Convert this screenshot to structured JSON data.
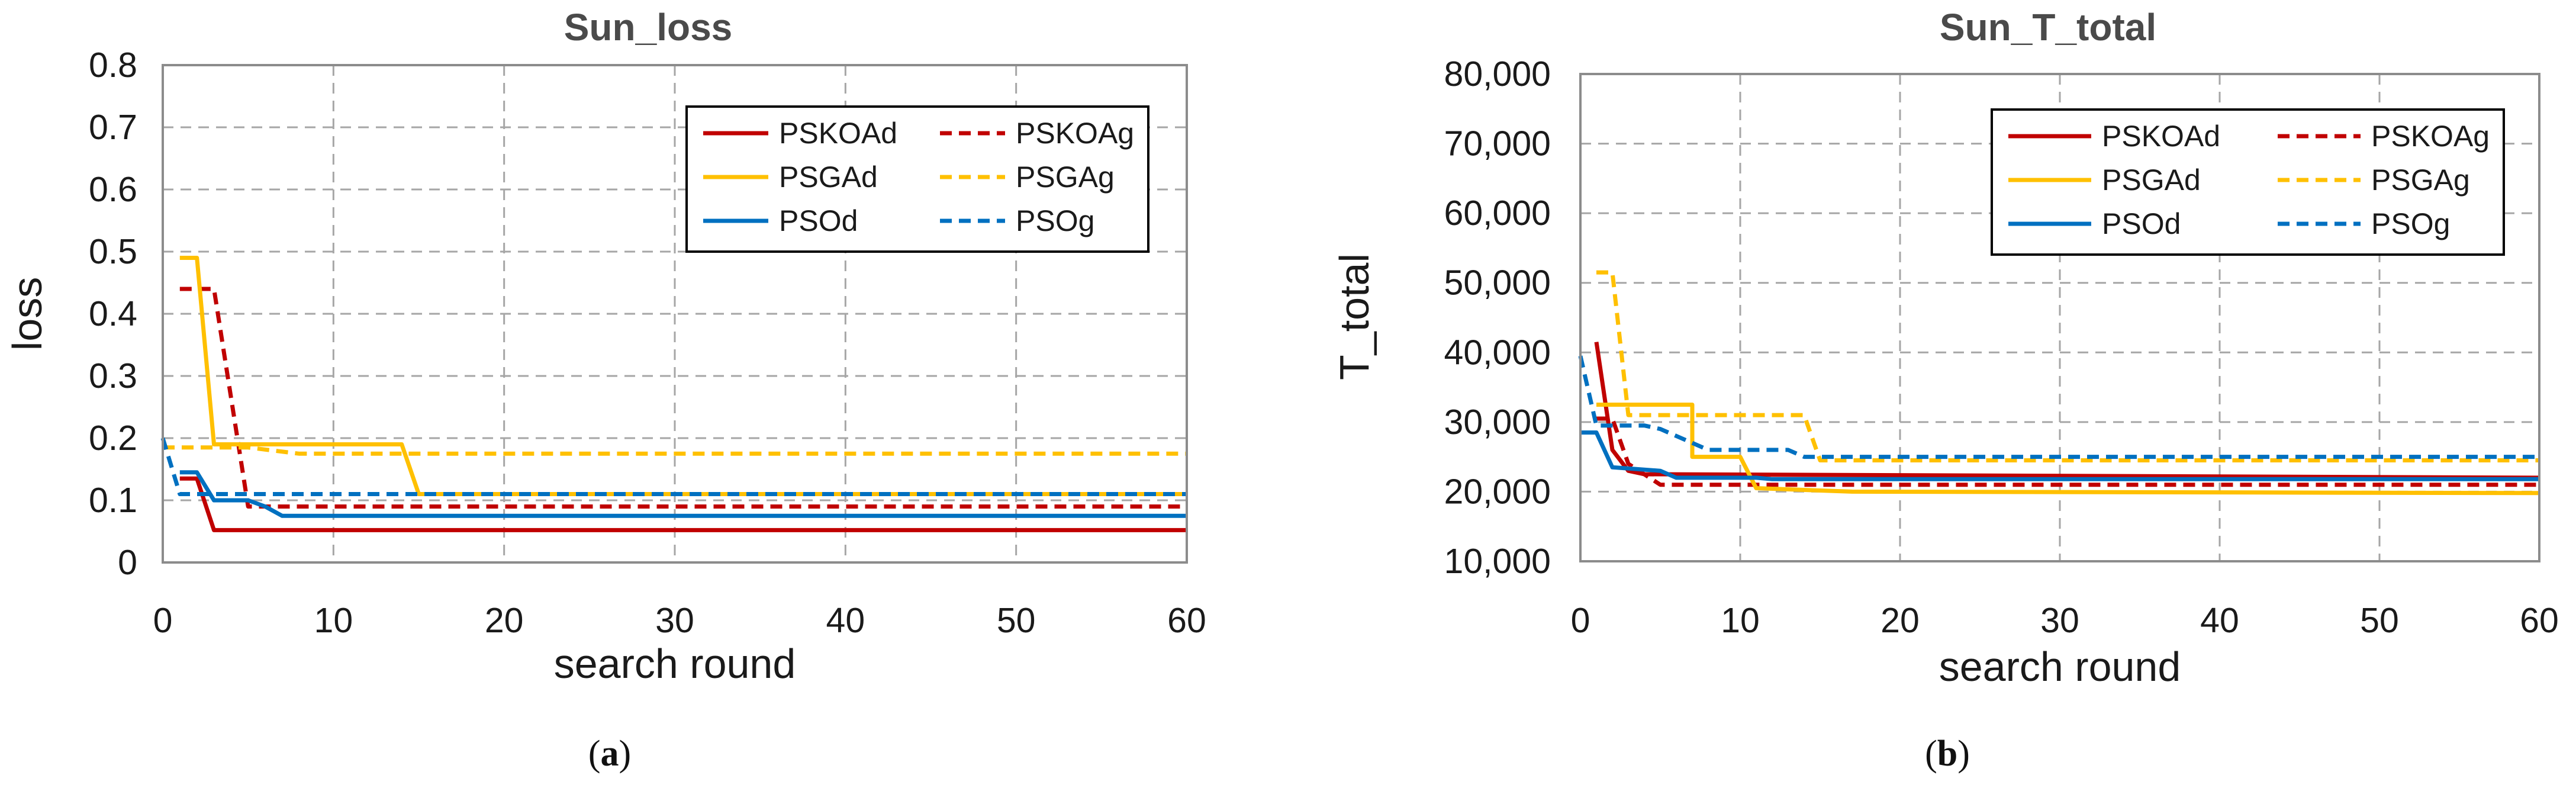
{
  "chart_data": [
    {
      "type": "line",
      "title": "Sun_loss",
      "xlabel": "search round",
      "ylabel": "loss",
      "caption": "a",
      "xlim": [
        0,
        60
      ],
      "ylim": [
        0,
        0.8
      ],
      "xticks": [
        0,
        10,
        20,
        30,
        40,
        50,
        60
      ],
      "xtick_labels": [
        "0",
        "10",
        "20",
        "30",
        "40",
        "50",
        "60"
      ],
      "yticks": [
        0,
        0.1,
        0.2,
        0.3,
        0.4,
        0.5,
        0.6,
        0.7,
        0.8
      ],
      "ytick_labels": [
        "0",
        "0.1",
        "0.2",
        "0.3",
        "0.4",
        "0.5",
        "0.6",
        "0.7",
        "0.8"
      ],
      "grid": true,
      "legend_position": "top-right",
      "series": [
        {
          "name": "PSKOAd",
          "color": "#c00000",
          "dash": "solid",
          "points": [
            [
              1,
              0.135
            ],
            [
              2,
              0.135
            ],
            [
              3,
              0.052
            ],
            [
              60,
              0.052
            ]
          ]
        },
        {
          "name": "PSKOAg",
          "color": "#c00000",
          "dash": "dashed",
          "points": [
            [
              1,
              0.44
            ],
            [
              3,
              0.44
            ],
            [
              5,
              0.09
            ],
            [
              60,
              0.09
            ]
          ]
        },
        {
          "name": "PSGAd",
          "color": "#ffc000",
          "dash": "solid",
          "points": [
            [
              1,
              0.49
            ],
            [
              2,
              0.49
            ],
            [
              3,
              0.19
            ],
            [
              14,
              0.19
            ],
            [
              15,
              0.11
            ],
            [
              60,
              0.11
            ]
          ]
        },
        {
          "name": "PSGAg",
          "color": "#ffc000",
          "dash": "dashed",
          "points": [
            [
              0,
              0.185
            ],
            [
              5,
              0.185
            ],
            [
              8,
              0.175
            ],
            [
              60,
              0.175
            ]
          ]
        },
        {
          "name": "PSOd",
          "color": "#0070c0",
          "dash": "solid",
          "points": [
            [
              1,
              0.145
            ],
            [
              2,
              0.145
            ],
            [
              3,
              0.1
            ],
            [
              5,
              0.1
            ],
            [
              6,
              0.09
            ],
            [
              7,
              0.075
            ],
            [
              60,
              0.075
            ]
          ]
        },
        {
          "name": "PSOg",
          "color": "#0070c0",
          "dash": "dashed",
          "points": [
            [
              0,
              0.2
            ],
            [
              1,
              0.11
            ],
            [
              60,
              0.11
            ]
          ]
        }
      ]
    },
    {
      "type": "line",
      "title": "Sun_T_total",
      "xlabel": "search round",
      "ylabel": "T_total",
      "caption": "b",
      "xlim": [
        0,
        60
      ],
      "ylim": [
        10000,
        80000
      ],
      "xticks": [
        0,
        10,
        20,
        30,
        40,
        50,
        60
      ],
      "xtick_labels": [
        "0",
        "10",
        "20",
        "30",
        "40",
        "50",
        "60"
      ],
      "yticks": [
        10000,
        20000,
        30000,
        40000,
        50000,
        60000,
        70000,
        80000
      ],
      "ytick_labels": [
        "10,000",
        "20,000",
        "30,000",
        "40,000",
        "50,000",
        "60,000",
        "70,000",
        "80,000"
      ],
      "grid": true,
      "legend_position": "top-right",
      "series": [
        {
          "name": "PSKOAd",
          "color": "#c00000",
          "dash": "solid",
          "points": [
            [
              1,
              41500
            ],
            [
              2,
              26000
            ],
            [
              3,
              23000
            ],
            [
              4,
              22500
            ],
            [
              60,
              22000
            ]
          ]
        },
        {
          "name": "PSKOAg",
          "color": "#c00000",
          "dash": "dashed",
          "points": [
            [
              1,
              30500
            ],
            [
              2,
              30500
            ],
            [
              3,
              24000
            ],
            [
              5,
              21000
            ],
            [
              60,
              21000
            ]
          ]
        },
        {
          "name": "PSGAd",
          "color": "#ffc000",
          "dash": "solid",
          "points": [
            [
              1,
              32500
            ],
            [
              7,
              32500
            ],
            [
              7,
              25000
            ],
            [
              10,
              25000
            ],
            [
              11,
              20500
            ],
            [
              17,
              20000
            ],
            [
              60,
              19800
            ]
          ]
        },
        {
          "name": "PSGAg",
          "color": "#ffc000",
          "dash": "dashed",
          "points": [
            [
              1,
              51500
            ],
            [
              2,
              51500
            ],
            [
              3,
              31000
            ],
            [
              14,
              31000
            ],
            [
              15,
              24500
            ],
            [
              60,
              24500
            ]
          ]
        },
        {
          "name": "PSOd",
          "color": "#0070c0",
          "dash": "solid",
          "points": [
            [
              0,
              28500
            ],
            [
              1,
              28500
            ],
            [
              2,
              23500
            ],
            [
              5,
              23000
            ],
            [
              6,
              22000
            ],
            [
              11,
              22000
            ],
            [
              12,
              21800
            ],
            [
              60,
              21800
            ]
          ]
        },
        {
          "name": "PSOg",
          "color": "#0070c0",
          "dash": "dashed",
          "points": [
            [
              0,
              39500
            ],
            [
              1,
              29500
            ],
            [
              4,
              29500
            ],
            [
              5,
              29000
            ],
            [
              8,
              26000
            ],
            [
              13,
              26000
            ],
            [
              14,
              25000
            ],
            [
              60,
              25000
            ]
          ]
        }
      ]
    }
  ]
}
